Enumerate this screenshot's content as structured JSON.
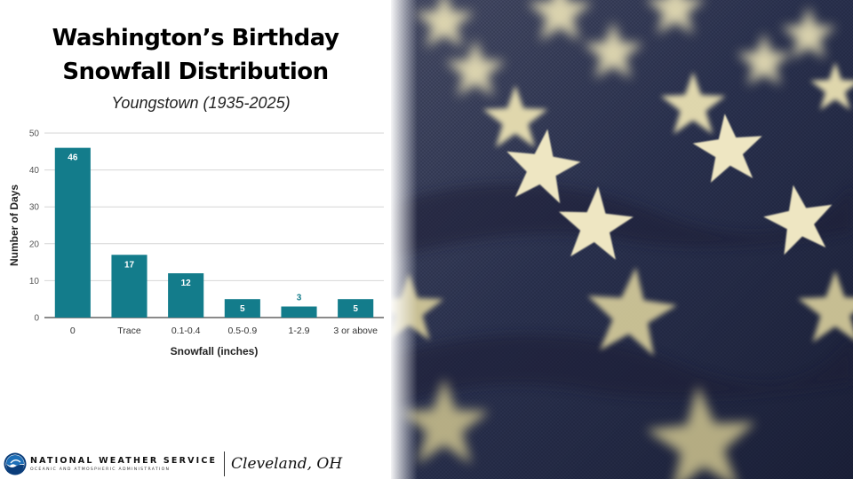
{
  "title_lines": [
    "Washington’s Birthday",
    "Snowfall Distribution"
  ],
  "subtitle": "Youngstown (1935-2025)",
  "chart_data": {
    "type": "bar",
    "title": "Washington’s Birthday Snowfall Distribution",
    "subtitle": "Youngstown (1935-2025)",
    "categories": [
      "0",
      "Trace",
      "0.1-0.4",
      "0.5-0.9",
      "1-2.9",
      "3 or above"
    ],
    "values": [
      46,
      17,
      12,
      5,
      3,
      5
    ],
    "xlabel": "Snowfall (inches)",
    "ylabel": "Number of Days",
    "ylim": [
      0,
      50
    ],
    "yticks": [
      0,
      10,
      20,
      30,
      40,
      50
    ],
    "grid": true,
    "legend": "none",
    "bar_color": "#137c8b",
    "label_color_inside": "#ffffff",
    "label_color_outside": "#137c8b"
  },
  "footer": {
    "agency_name": "NATIONAL WEATHER SERVICE",
    "agency_sub": "OCEANIC AND ATMOSPHERIC ADMINISTRATION",
    "office": "Cleveland, OH",
    "logo_icon": "noaa-logo-icon"
  },
  "colors": {
    "flag_navy": "#2c3350",
    "star_gold": "#e6deb4"
  }
}
